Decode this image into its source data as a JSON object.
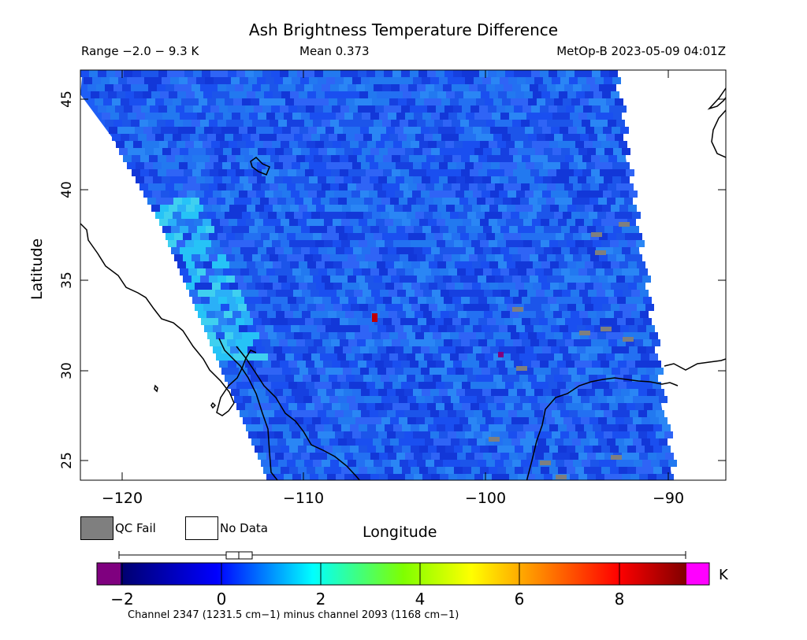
{
  "header": {
    "title": "Ash Brightness Temperature Difference",
    "range": "Range −2.0 − 9.3 K",
    "mean": "Mean 0.373",
    "satellite_time": "MetOp-B 2023-05-09 04:01Z"
  },
  "axes": {
    "ylabel": "Latitude",
    "xlabel": "Longitude",
    "lat_ticks": [
      "25",
      "30",
      "35",
      "40",
      "45"
    ],
    "lon_ticks": [
      "−120",
      "−110",
      "−100",
      "−90"
    ]
  },
  "legend": {
    "qc_fail": "QC Fail",
    "no_data": "No Data",
    "qc_color": "#7f7f7f"
  },
  "colorbar": {
    "ticks": [
      "−2",
      "0",
      "2",
      "4",
      "6",
      "8"
    ],
    "unit": "K",
    "footnote": "Channel 2347 (1231.5 cm−1) minus channel 2093 (1168 cm−1)"
  },
  "chart_data": {
    "type": "heatmap",
    "title": "Ash Brightness Temperature Difference",
    "xlabel": "Longitude",
    "ylabel": "Latitude",
    "xlim": [
      -122.2,
      -87.3
    ],
    "ylim": [
      23.9,
      46.6
    ],
    "value_range": [
      -2.0,
      9.3
    ],
    "mean": 0.373,
    "colorbar_range": [
      -2.5,
      9.3
    ]
  }
}
